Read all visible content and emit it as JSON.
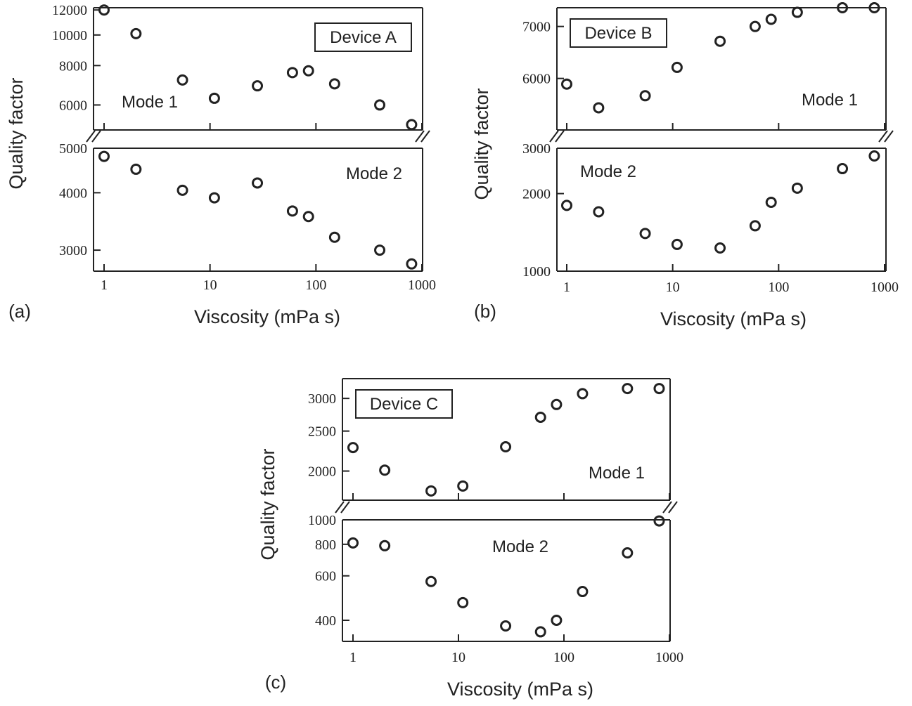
{
  "colors": {
    "ink": "#222222",
    "background": "#ffffff"
  },
  "chart_data": [
    {
      "type": "scatter",
      "panel_label": "(a)",
      "device_label": "Device A",
      "xlabel": "Viscosity (mPa s)",
      "ylabel": "Quality factor",
      "x_scale": "log",
      "xlim": [
        0.85,
        1000
      ],
      "x_ticks": [
        1,
        10,
        100,
        1000
      ],
      "x_tick_labels": [
        "1",
        "10",
        "100",
        "1000"
      ],
      "axis_break": true,
      "subplots": [
        {
          "mode_label": "Mode 1",
          "ylim": [
            5000,
            12200
          ],
          "y_scale": "log",
          "y_ticks": [
            6000,
            8000,
            10000,
            12000
          ],
          "y_tick_labels": [
            "6000",
            "8000",
            "10000",
            "12000"
          ],
          "x": [
            1,
            2,
            5.5,
            11,
            28,
            60,
            85,
            150,
            400,
            800
          ],
          "y": [
            12000,
            10100,
            7200,
            6300,
            6900,
            7600,
            7700,
            7000,
            6000,
            5200
          ]
        },
        {
          "mode_label": "Mode 2",
          "ylim": [
            2700,
            5000
          ],
          "y_scale": "log",
          "y_ticks": [
            3000,
            4000,
            5000
          ],
          "y_tick_labels": [
            "3000",
            "4000",
            "5000"
          ],
          "x": [
            1,
            2,
            5.5,
            11,
            28,
            60,
            85,
            150,
            400,
            800
          ],
          "y": [
            4800,
            4500,
            4050,
            3900,
            4200,
            3650,
            3550,
            3200,
            3000,
            2800
          ]
        }
      ]
    },
    {
      "type": "scatter",
      "panel_label": "(b)",
      "device_label": "Device B",
      "xlabel": "Viscosity (mPa s)",
      "ylabel": "Quality factor",
      "x_scale": "log",
      "xlim": [
        0.85,
        1000
      ],
      "x_ticks": [
        1,
        10,
        100,
        1000
      ],
      "x_tick_labels": [
        "1",
        "10",
        "100",
        "1000"
      ],
      "axis_break": true,
      "subplots": [
        {
          "mode_label": "Mode 1",
          "ylim": [
            5150,
            7400
          ],
          "y_scale": "log",
          "y_ticks": [
            6000,
            7000
          ],
          "y_tick_labels": [
            "6000",
            "7000"
          ],
          "x": [
            1,
            2,
            5.5,
            11,
            28,
            60,
            85,
            150,
            400,
            800
          ],
          "y": [
            5900,
            5500,
            5700,
            6200,
            6700,
            7000,
            7150,
            7300,
            7400,
            7400
          ]
        },
        {
          "mode_label": "Mode 2",
          "ylim": [
            1000,
            3000
          ],
          "y_scale": "log",
          "y_ticks": [
            1000,
            2000,
            3000
          ],
          "y_tick_labels": [
            "1000",
            "2000",
            "3000"
          ],
          "x": [
            1,
            2,
            5.5,
            11,
            28,
            60,
            85,
            150,
            400,
            800
          ],
          "y": [
            1800,
            1700,
            1400,
            1270,
            1230,
            1500,
            1850,
            2100,
            2500,
            2800
          ]
        }
      ]
    },
    {
      "type": "scatter",
      "panel_label": "(c)",
      "device_label": "Device C",
      "xlabel": "Viscosity (mPa s)",
      "ylabel": "Quality factor",
      "x_scale": "log",
      "xlim": [
        0.85,
        1000
      ],
      "x_ticks": [
        1,
        10,
        100,
        1000
      ],
      "x_tick_labels": [
        "1",
        "10",
        "100",
        "1000"
      ],
      "axis_break": true,
      "subplots": [
        {
          "mode_label": "Mode 1",
          "ylim": [
            1700,
            3350
          ],
          "y_scale": "log",
          "y_ticks": [
            2000,
            2500,
            3000
          ],
          "y_tick_labels": [
            "2000",
            "2500",
            "3000"
          ],
          "x": [
            1,
            2,
            5.5,
            11,
            28,
            60,
            85,
            150,
            400,
            800
          ],
          "y": [
            2280,
            2010,
            1790,
            1840,
            2290,
            2700,
            2900,
            3080,
            3170,
            3170
          ]
        },
        {
          "mode_label": "Mode 2",
          "ylim": [
            330,
            1000
          ],
          "y_scale": "log",
          "y_ticks": [
            400,
            600,
            800,
            1000
          ],
          "y_tick_labels": [
            "400",
            "600",
            "800",
            "1000"
          ],
          "x": [
            1,
            2,
            5.5,
            11,
            28,
            60,
            85,
            150,
            400,
            800
          ],
          "y": [
            810,
            790,
            570,
            470,
            380,
            360,
            400,
            520,
            740,
            990
          ]
        }
      ]
    }
  ]
}
